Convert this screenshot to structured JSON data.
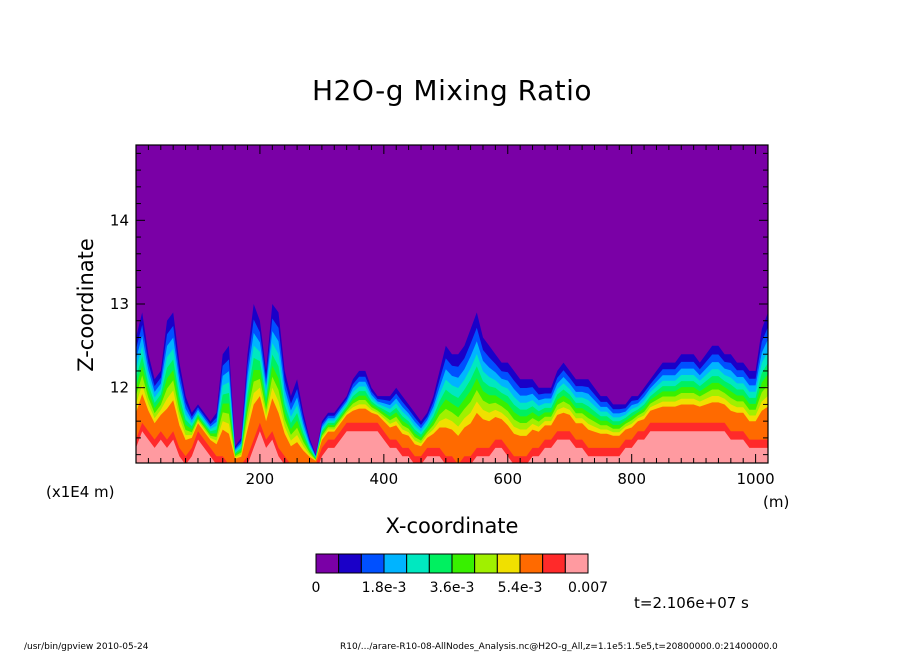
{
  "chart_data": {
    "type": "heatmap",
    "title": "H2O-g Mixing Ratio",
    "xlabel": "X-coordinate",
    "ylabel": "Z-coordinate",
    "x_unit": "(m)",
    "y_unit": "(x1E4 m)",
    "xlim": [
      0,
      1020
    ],
    "ylim": [
      11.1,
      14.9
    ],
    "x_ticks": [
      200,
      400,
      600,
      800,
      1000
    ],
    "y_ticks": [
      12,
      13,
      14
    ],
    "colorbar": {
      "levels": 12,
      "colors": [
        "#7a00a6",
        "#1a00c8",
        "#0050ff",
        "#00b4ff",
        "#00e8c0",
        "#00f060",
        "#38f000",
        "#a0f000",
        "#f0e000",
        "#ff6a00",
        "#ff2a2a",
        "#ff9aa0"
      ],
      "tick_labels": [
        "0",
        "1.8e-3",
        "3.6e-3",
        "5.4e-3",
        "0.007"
      ],
      "tick_levels": [
        0,
        3,
        6,
        9,
        12
      ],
      "range": [
        0,
        0.007
      ]
    },
    "profile": {
      "x": [
        0,
        10,
        20,
        30,
        40,
        50,
        60,
        70,
        80,
        90,
        100,
        110,
        120,
        130,
        140,
        150,
        160,
        170,
        180,
        190,
        200,
        210,
        220,
        230,
        240,
        250,
        260,
        270,
        280,
        290,
        300,
        310,
        320,
        330,
        340,
        350,
        360,
        370,
        380,
        390,
        400,
        410,
        420,
        430,
        440,
        450,
        460,
        470,
        480,
        490,
        500,
        510,
        520,
        530,
        540,
        550,
        560,
        570,
        580,
        590,
        600,
        610,
        620,
        630,
        640,
        650,
        660,
        670,
        680,
        690,
        700,
        710,
        720,
        730,
        740,
        750,
        760,
        770,
        780,
        790,
        800,
        810,
        820,
        830,
        840,
        850,
        860,
        870,
        880,
        890,
        900,
        910,
        920,
        930,
        940,
        950,
        960,
        970,
        980,
        990,
        1000,
        1010,
        1020
      ],
      "top_z": [
        12.6,
        12.9,
        12.4,
        12.1,
        12.2,
        12.8,
        12.9,
        12.3,
        11.9,
        11.7,
        11.8,
        11.7,
        11.6,
        11.7,
        12.4,
        12.5,
        11.3,
        11.4,
        12.4,
        13.0,
        12.8,
        12.2,
        13.0,
        12.9,
        12.2,
        11.9,
        12.1,
        11.7,
        11.4,
        11.2,
        11.6,
        11.7,
        11.7,
        11.8,
        11.9,
        12.1,
        12.2,
        12.2,
        12.0,
        11.9,
        11.9,
        11.9,
        12.0,
        11.9,
        11.8,
        11.7,
        11.6,
        11.7,
        11.9,
        12.2,
        12.5,
        12.4,
        12.4,
        12.5,
        12.7,
        12.9,
        12.6,
        12.5,
        12.4,
        12.3,
        12.3,
        12.2,
        12.1,
        12.1,
        12.1,
        12.0,
        12.0,
        12.0,
        12.2,
        12.3,
        12.2,
        12.1,
        12.1,
        12.1,
        12.0,
        11.9,
        11.9,
        11.8,
        11.8,
        11.8,
        11.9,
        11.9,
        12.0,
        12.1,
        12.2,
        12.3,
        12.3,
        12.3,
        12.4,
        12.4,
        12.4,
        12.3,
        12.4,
        12.5,
        12.5,
        12.4,
        12.4,
        12.3,
        12.3,
        12.2,
        12.2,
        12.7,
        12.9
      ],
      "core_z": [
        11.4,
        11.6,
        11.5,
        11.4,
        11.5,
        11.4,
        11.5,
        11.3,
        11.2,
        11.3,
        11.5,
        11.4,
        11.3,
        11.2,
        11.2,
        11.1,
        11.1,
        11.1,
        11.2,
        11.4,
        11.6,
        11.4,
        11.5,
        11.3,
        11.2,
        11.1,
        11.1,
        11.1,
        11.1,
        11.1,
        11.3,
        11.4,
        11.4,
        11.5,
        11.6,
        11.6,
        11.6,
        11.6,
        11.6,
        11.6,
        11.5,
        11.4,
        11.4,
        11.3,
        11.3,
        11.2,
        11.2,
        11.3,
        11.3,
        11.3,
        11.2,
        11.2,
        11.1,
        11.2,
        11.2,
        11.3,
        11.3,
        11.3,
        11.4,
        11.4,
        11.3,
        11.2,
        11.2,
        11.2,
        11.3,
        11.3,
        11.4,
        11.4,
        11.5,
        11.5,
        11.5,
        11.4,
        11.4,
        11.3,
        11.3,
        11.3,
        11.3,
        11.3,
        11.3,
        11.4,
        11.4,
        11.5,
        11.5,
        11.6,
        11.6,
        11.6,
        11.6,
        11.6,
        11.6,
        11.6,
        11.6,
        11.6,
        11.6,
        11.6,
        11.6,
        11.6,
        11.5,
        11.5,
        11.5,
        11.4,
        11.4,
        11.4,
        11.4
      ]
    }
  },
  "time_label": "t=2.106e+07 s",
  "footer": {
    "left": "/usr/bin/gpview   2010-05-24",
    "right": "R10/.../arare-R10-08-AllNodes_Analysis.nc@H2O-g_All,z=1.1e5:1.5e5,t=20800000.0:21400000.0"
  }
}
